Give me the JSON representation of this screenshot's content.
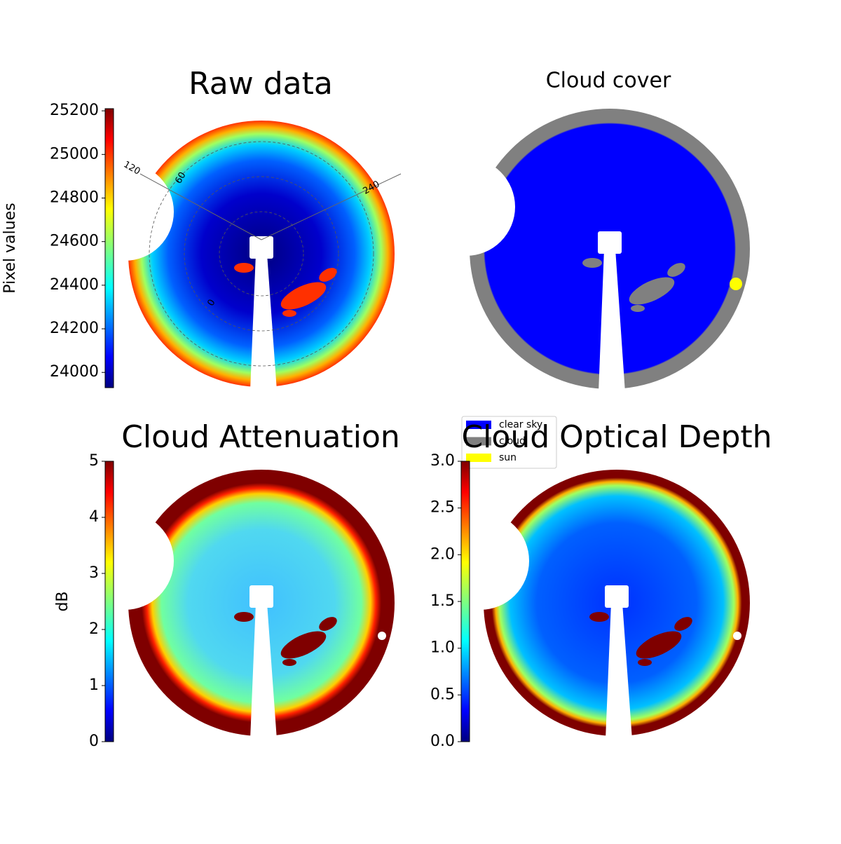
{
  "chart_data": [
    {
      "type": "image",
      "title": "Raw data",
      "colormap": "jet",
      "annotations": [
        "120",
        "60",
        "240",
        "0"
      ],
      "colorbar": {
        "label": "Pixel values",
        "lim": [
          23930,
          25210
        ],
        "ticks": [
          24000,
          24200,
          24400,
          24600,
          24800,
          25000,
          25200
        ]
      }
    },
    {
      "type": "image",
      "title": "Cloud cover",
      "legend": [
        {
          "name": "clear sky",
          "color": "#0000ff"
        },
        {
          "name": "cloud",
          "color": "#808080"
        },
        {
          "name": "sun",
          "color": "#ffff00"
        }
      ]
    },
    {
      "type": "image",
      "title": "Cloud Attenuation",
      "colormap": "jet",
      "colorbar": {
        "label": "dB",
        "lim": [
          0,
          5
        ],
        "ticks": [
          0,
          1,
          2,
          3,
          4,
          5
        ]
      }
    },
    {
      "type": "image",
      "title": "Cloud Optical Depth",
      "colormap": "jet",
      "colorbar": {
        "lim": [
          0,
          3
        ],
        "ticks": [
          {
            "value": 0,
            "label": "0.0"
          },
          {
            "value": 0.5,
            "label": "0.5"
          },
          {
            "value": 1,
            "label": "1.0"
          },
          {
            "value": 1.5,
            "label": "1.5"
          },
          {
            "value": 2,
            "label": "2.0"
          },
          {
            "value": 2.5,
            "label": "2.5"
          },
          {
            "value": 3,
            "label": "3.0"
          }
        ]
      }
    }
  ]
}
